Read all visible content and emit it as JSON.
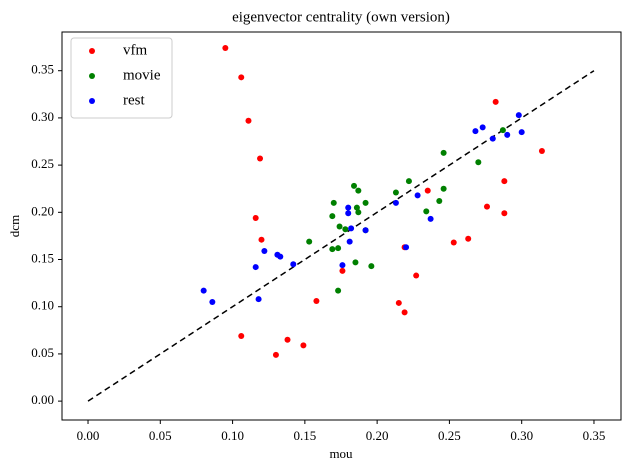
{
  "chart_data": {
    "type": "scatter",
    "title": "eigenvector centrality (own version)",
    "x_label": "mou",
    "y_label": "dcm",
    "xlim": [
      -0.018,
      0.3687
    ],
    "ylim": [
      -0.02,
      0.391
    ],
    "xticks": [
      {
        "value": 0,
        "label": "0.00"
      },
      {
        "value": 0.05,
        "label": "0.05"
      },
      {
        "value": 0.1,
        "label": "0.10"
      },
      {
        "value": 0.15,
        "label": "0.15"
      },
      {
        "value": 0.2,
        "label": "0.20"
      },
      {
        "value": 0.25,
        "label": "0.25"
      },
      {
        "value": 0.3,
        "label": "0.30"
      },
      {
        "value": 0.35,
        "label": "0.35"
      }
    ],
    "yticks": [
      {
        "value": 0,
        "label": "0.00"
      },
      {
        "value": 0.05,
        "label": "0.05"
      },
      {
        "value": 0.1,
        "label": "0.10"
      },
      {
        "value": 0.15,
        "label": "0.15"
      },
      {
        "value": 0.2,
        "label": "0.20"
      },
      {
        "value": 0.25,
        "label": "0.25"
      },
      {
        "value": 0.3,
        "label": "0.30"
      },
      {
        "value": 0.35,
        "label": "0.35"
      }
    ],
    "legend": "upper left",
    "reference_line": {
      "x": [
        0,
        0.35
      ],
      "y": [
        0,
        0.35
      ],
      "color": "#000000",
      "style": "dashed"
    },
    "series": [
      {
        "name": "vfm",
        "color": "#ff0000",
        "x": [
          0.095,
          0.106,
          0.111,
          0.119,
          0.116,
          0.12,
          0.106,
          0.13,
          0.138,
          0.149,
          0.158,
          0.176,
          0.215,
          0.219,
          0.219,
          0.227,
          0.235,
          0.253,
          0.263,
          0.276,
          0.282,
          0.288,
          0.288,
          0.314
        ],
        "y": [
          0.374,
          0.343,
          0.297,
          0.257,
          0.194,
          0.171,
          0.069,
          0.049,
          0.065,
          0.059,
          0.106,
          0.138,
          0.104,
          0.094,
          0.163,
          0.133,
          0.223,
          0.168,
          0.172,
          0.206,
          0.317,
          0.233,
          0.199,
          0.265
        ]
      },
      {
        "name": "movie",
        "color": "#008000",
        "x": [
          0.153,
          0.17,
          0.169,
          0.174,
          0.169,
          0.173,
          0.173,
          0.178,
          0.184,
          0.187,
          0.186,
          0.187,
          0.185,
          0.192,
          0.192,
          0.196,
          0.213,
          0.222,
          0.234,
          0.243,
          0.246,
          0.246,
          0.27,
          0.287
        ],
        "y": [
          0.169,
          0.21,
          0.196,
          0.185,
          0.161,
          0.162,
          0.117,
          0.182,
          0.228,
          0.223,
          0.205,
          0.2,
          0.147,
          0.181,
          0.21,
          0.143,
          0.221,
          0.233,
          0.201,
          0.212,
          0.263,
          0.225,
          0.253,
          0.287
        ]
      },
      {
        "name": "rest",
        "color": "#0000ff",
        "x": [
          0.08,
          0.086,
          0.116,
          0.118,
          0.122,
          0.131,
          0.133,
          0.142,
          0.176,
          0.18,
          0.18,
          0.181,
          0.182,
          0.192,
          0.213,
          0.22,
          0.228,
          0.237,
          0.268,
          0.273,
          0.28,
          0.29,
          0.298,
          0.3
        ],
        "y": [
          0.117,
          0.105,
          0.142,
          0.108,
          0.159,
          0.155,
          0.153,
          0.145,
          0.144,
          0.205,
          0.199,
          0.169,
          0.183,
          0.181,
          0.21,
          0.163,
          0.218,
          0.193,
          0.286,
          0.29,
          0.278,
          0.282,
          0.303,
          0.285
        ]
      }
    ]
  }
}
